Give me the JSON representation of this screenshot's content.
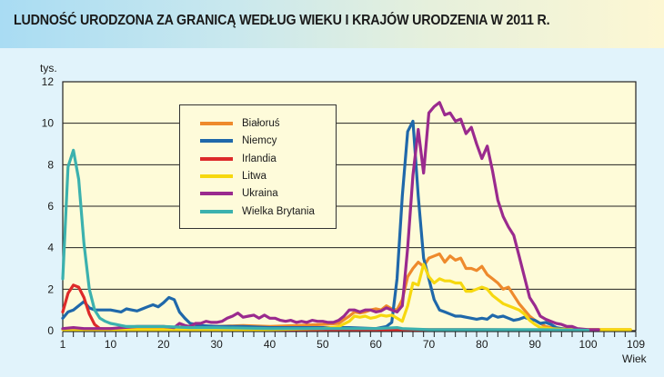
{
  "header": {
    "title": "LUDNOŚĆ URODZONA ZA GRANICĄ WEDŁUG WIEKU I KRAJÓW URODZENIA W 2011 R."
  },
  "colors": {
    "plot_bg": "#fefbd8",
    "page_bg": "#e1f3fb",
    "grid": "#222222"
  },
  "chart_data": {
    "type": "line",
    "title": "LUDNOŚĆ URODZONA ZA GRANICĄ WEDŁUG WIEKU I KRAJÓW URODZENIA W 2011 R.",
    "xlabel": "Wiek",
    "ylabel": "tys.",
    "xlim": [
      1,
      109
    ],
    "ylim": [
      0,
      12
    ],
    "x_ticks": [
      1,
      10,
      20,
      30,
      40,
      50,
      60,
      70,
      80,
      90,
      100,
      109
    ],
    "y_ticks": [
      0,
      2,
      4,
      6,
      8,
      10,
      12
    ],
    "grid": "horizontal",
    "legend_position": "upper-left-inset",
    "series": [
      {
        "name": "Białoruś",
        "color": "#ee8a2c",
        "points": [
          [
            1,
            0.05
          ],
          [
            10,
            0.1
          ],
          [
            20,
            0.15
          ],
          [
            25,
            0.2
          ],
          [
            30,
            0.2
          ],
          [
            35,
            0.25
          ],
          [
            40,
            0.2
          ],
          [
            45,
            0.25
          ],
          [
            50,
            0.3
          ],
          [
            53,
            0.35
          ],
          [
            55,
            0.7
          ],
          [
            56,
            0.9
          ],
          [
            57,
            0.85
          ],
          [
            58,
            0.9
          ],
          [
            59,
            1.0
          ],
          [
            60,
            1.05
          ],
          [
            61,
            1.0
          ],
          [
            62,
            1.2
          ],
          [
            63,
            1.05
          ],
          [
            64,
            1.0
          ],
          [
            65,
            1.5
          ],
          [
            66,
            2.6
          ],
          [
            67,
            3.0
          ],
          [
            68,
            3.3
          ],
          [
            69,
            3.1
          ],
          [
            70,
            3.5
          ],
          [
            71,
            3.6
          ],
          [
            72,
            3.7
          ],
          [
            73,
            3.3
          ],
          [
            74,
            3.6
          ],
          [
            75,
            3.4
          ],
          [
            76,
            3.5
          ],
          [
            77,
            3.0
          ],
          [
            78,
            3.0
          ],
          [
            79,
            2.9
          ],
          [
            80,
            3.1
          ],
          [
            81,
            2.7
          ],
          [
            82,
            2.5
          ],
          [
            83,
            2.3
          ],
          [
            84,
            2.0
          ],
          [
            85,
            2.1
          ],
          [
            86,
            1.7
          ],
          [
            87,
            1.3
          ],
          [
            88,
            1.0
          ],
          [
            89,
            0.7
          ],
          [
            90,
            0.5
          ],
          [
            91,
            0.35
          ],
          [
            92,
            0.2
          ],
          [
            93,
            0.15
          ],
          [
            95,
            0.1
          ],
          [
            100,
            0.05
          ],
          [
            103,
            0.05
          ],
          [
            105,
            0.05
          ],
          [
            108,
            0.05
          ]
        ]
      },
      {
        "name": "Niemcy",
        "color": "#1f68aa",
        "points": [
          [
            1,
            0.6
          ],
          [
            2,
            0.9
          ],
          [
            3,
            1.0
          ],
          [
            4,
            1.2
          ],
          [
            5,
            1.4
          ],
          [
            6,
            1.1
          ],
          [
            7,
            1.0
          ],
          [
            8,
            1.0
          ],
          [
            9,
            1.0
          ],
          [
            10,
            1.0
          ],
          [
            11,
            0.95
          ],
          [
            12,
            0.9
          ],
          [
            13,
            1.05
          ],
          [
            14,
            1.0
          ],
          [
            15,
            0.95
          ],
          [
            16,
            1.05
          ],
          [
            17,
            1.15
          ],
          [
            18,
            1.25
          ],
          [
            19,
            1.15
          ],
          [
            20,
            1.35
          ],
          [
            21,
            1.6
          ],
          [
            22,
            1.5
          ],
          [
            23,
            0.9
          ],
          [
            24,
            0.6
          ],
          [
            25,
            0.35
          ],
          [
            27,
            0.25
          ],
          [
            30,
            0.2
          ],
          [
            35,
            0.2
          ],
          [
            40,
            0.15
          ],
          [
            45,
            0.15
          ],
          [
            50,
            0.15
          ],
          [
            55,
            0.15
          ],
          [
            60,
            0.1
          ],
          [
            62,
            0.2
          ],
          [
            63,
            0.4
          ],
          [
            64,
            2.5
          ],
          [
            65,
            6.5
          ],
          [
            66,
            9.6
          ],
          [
            67,
            10.1
          ],
          [
            68,
            6.5
          ],
          [
            69,
            3.5
          ],
          [
            70,
            2.5
          ],
          [
            71,
            1.5
          ],
          [
            72,
            1.0
          ],
          [
            73,
            0.9
          ],
          [
            74,
            0.8
          ],
          [
            75,
            0.7
          ],
          [
            76,
            0.7
          ],
          [
            77,
            0.65
          ],
          [
            78,
            0.6
          ],
          [
            79,
            0.55
          ],
          [
            80,
            0.6
          ],
          [
            81,
            0.55
          ],
          [
            82,
            0.75
          ],
          [
            83,
            0.65
          ],
          [
            84,
            0.7
          ],
          [
            85,
            0.6
          ],
          [
            86,
            0.5
          ],
          [
            87,
            0.55
          ],
          [
            88,
            0.65
          ],
          [
            89,
            0.55
          ],
          [
            90,
            0.5
          ],
          [
            91,
            0.35
          ],
          [
            92,
            0.4
          ],
          [
            93,
            0.3
          ],
          [
            94,
            0.15
          ],
          [
            96,
            0.05
          ],
          [
            100,
            0.02
          ]
        ]
      },
      {
        "name": "Irlandia",
        "color": "#dd2a2a",
        "points": [
          [
            1,
            0.9
          ],
          [
            2,
            1.8
          ],
          [
            3,
            2.2
          ],
          [
            4,
            2.1
          ],
          [
            5,
            1.6
          ],
          [
            6,
            0.8
          ],
          [
            7,
            0.3
          ],
          [
            8,
            0.1
          ],
          [
            10,
            0.05
          ],
          [
            20,
            0.05
          ],
          [
            40,
            0.05
          ],
          [
            60,
            0.05
          ],
          [
            80,
            0.05
          ],
          [
            100,
            0.02
          ]
        ]
      },
      {
        "name": "Litwa",
        "color": "#f6d80f",
        "points": [
          [
            1,
            0.05
          ],
          [
            10,
            0.05
          ],
          [
            20,
            0.05
          ],
          [
            30,
            0.05
          ],
          [
            40,
            0.05
          ],
          [
            50,
            0.1
          ],
          [
            53,
            0.2
          ],
          [
            55,
            0.45
          ],
          [
            56,
            0.7
          ],
          [
            57,
            0.65
          ],
          [
            58,
            0.7
          ],
          [
            59,
            0.6
          ],
          [
            60,
            0.65
          ],
          [
            61,
            0.75
          ],
          [
            62,
            0.7
          ],
          [
            63,
            0.75
          ],
          [
            64,
            0.6
          ],
          [
            65,
            0.45
          ],
          [
            66,
            1.2
          ],
          [
            67,
            2.3
          ],
          [
            68,
            2.2
          ],
          [
            69,
            3.2
          ],
          [
            70,
            2.6
          ],
          [
            71,
            2.3
          ],
          [
            72,
            2.5
          ],
          [
            73,
            2.4
          ],
          [
            74,
            2.4
          ],
          [
            75,
            2.3
          ],
          [
            76,
            2.3
          ],
          [
            77,
            1.9
          ],
          [
            78,
            1.9
          ],
          [
            79,
            2.0
          ],
          [
            80,
            2.1
          ],
          [
            81,
            2.0
          ],
          [
            82,
            1.7
          ],
          [
            83,
            1.5
          ],
          [
            84,
            1.3
          ],
          [
            85,
            1.2
          ],
          [
            86,
            1.1
          ],
          [
            87,
            1.0
          ],
          [
            88,
            0.8
          ],
          [
            89,
            0.5
          ],
          [
            90,
            0.3
          ],
          [
            91,
            0.15
          ],
          [
            93,
            0.1
          ],
          [
            96,
            0.05
          ],
          [
            100,
            0.05
          ],
          [
            104,
            0.05
          ],
          [
            108,
            0.05
          ]
        ]
      },
      {
        "name": "Ukraina",
        "color": "#9a2a8e",
        "points": [
          [
            1,
            0.1
          ],
          [
            3,
            0.15
          ],
          [
            5,
            0.1
          ],
          [
            10,
            0.1
          ],
          [
            15,
            0.2
          ],
          [
            20,
            0.2
          ],
          [
            22,
            0.15
          ],
          [
            23,
            0.35
          ],
          [
            24,
            0.25
          ],
          [
            25,
            0.2
          ],
          [
            26,
            0.35
          ],
          [
            27,
            0.35
          ],
          [
            28,
            0.45
          ],
          [
            29,
            0.4
          ],
          [
            30,
            0.4
          ],
          [
            31,
            0.45
          ],
          [
            32,
            0.6
          ],
          [
            33,
            0.7
          ],
          [
            34,
            0.85
          ],
          [
            35,
            0.65
          ],
          [
            36,
            0.7
          ],
          [
            37,
            0.75
          ],
          [
            38,
            0.6
          ],
          [
            39,
            0.75
          ],
          [
            40,
            0.6
          ],
          [
            41,
            0.6
          ],
          [
            42,
            0.5
          ],
          [
            43,
            0.45
          ],
          [
            44,
            0.5
          ],
          [
            45,
            0.4
          ],
          [
            46,
            0.45
          ],
          [
            47,
            0.4
          ],
          [
            48,
            0.5
          ],
          [
            49,
            0.45
          ],
          [
            50,
            0.45
          ],
          [
            51,
            0.4
          ],
          [
            52,
            0.4
          ],
          [
            53,
            0.5
          ],
          [
            54,
            0.7
          ],
          [
            55,
            1.0
          ],
          [
            56,
            1.0
          ],
          [
            57,
            0.9
          ],
          [
            58,
            1.0
          ],
          [
            59,
            1.0
          ],
          [
            60,
            0.9
          ],
          [
            61,
            0.95
          ],
          [
            62,
            1.1
          ],
          [
            63,
            1.0
          ],
          [
            64,
            0.9
          ],
          [
            65,
            1.2
          ],
          [
            66,
            4.0
          ],
          [
            67,
            7.5
          ],
          [
            68,
            9.7
          ],
          [
            69,
            7.6
          ],
          [
            70,
            10.5
          ],
          [
            71,
            10.8
          ],
          [
            72,
            11.0
          ],
          [
            73,
            10.4
          ],
          [
            74,
            10.5
          ],
          [
            75,
            10.1
          ],
          [
            76,
            10.2
          ],
          [
            77,
            9.5
          ],
          [
            78,
            9.8
          ],
          [
            79,
            9.0
          ],
          [
            80,
            8.3
          ],
          [
            81,
            8.9
          ],
          [
            82,
            7.7
          ],
          [
            83,
            6.3
          ],
          [
            84,
            5.5
          ],
          [
            85,
            5.0
          ],
          [
            86,
            4.6
          ],
          [
            87,
            3.6
          ],
          [
            88,
            2.6
          ],
          [
            89,
            1.6
          ],
          [
            90,
            1.2
          ],
          [
            91,
            0.7
          ],
          [
            92,
            0.55
          ],
          [
            93,
            0.45
          ],
          [
            94,
            0.35
          ],
          [
            95,
            0.3
          ],
          [
            96,
            0.2
          ],
          [
            97,
            0.2
          ],
          [
            98,
            0.1
          ],
          [
            100,
            0.05
          ],
          [
            101,
            0.05
          ],
          [
            102,
            0.05
          ]
        ]
      },
      {
        "name": "Wielka Brytania",
        "color": "#3bb1ae",
        "points": [
          [
            1,
            2.5
          ],
          [
            2,
            7.9
          ],
          [
            3,
            8.7
          ],
          [
            4,
            7.3
          ],
          [
            5,
            4.2
          ],
          [
            6,
            2.0
          ],
          [
            7,
            1.0
          ],
          [
            8,
            0.6
          ],
          [
            9,
            0.45
          ],
          [
            10,
            0.35
          ],
          [
            11,
            0.3
          ],
          [
            12,
            0.25
          ],
          [
            13,
            0.2
          ],
          [
            15,
            0.2
          ],
          [
            20,
            0.2
          ],
          [
            25,
            0.15
          ],
          [
            30,
            0.15
          ],
          [
            40,
            0.1
          ],
          [
            50,
            0.1
          ],
          [
            60,
            0.1
          ],
          [
            64,
            0.15
          ],
          [
            65,
            0.1
          ],
          [
            70,
            0.05
          ],
          [
            80,
            0.05
          ],
          [
            90,
            0.05
          ],
          [
            100,
            0.02
          ]
        ]
      }
    ]
  },
  "legend": {
    "items": [
      {
        "label": "Białoruś",
        "color": "#ee8a2c"
      },
      {
        "label": "Niemcy",
        "color": "#1f68aa"
      },
      {
        "label": "Irlandia",
        "color": "#dd2a2a"
      },
      {
        "label": "Litwa",
        "color": "#f6d80f"
      },
      {
        "label": "Ukraina",
        "color": "#9a2a8e"
      },
      {
        "label": "Wielka Brytania",
        "color": "#3bb1ae"
      }
    ]
  },
  "axes": {
    "y_unit": "tys.",
    "x_label": "Wiek",
    "y_tick_labels": [
      "0",
      "2",
      "4",
      "6",
      "8",
      "10",
      "12"
    ],
    "x_tick_labels": [
      "1",
      "10",
      "20",
      "30",
      "40",
      "50",
      "60",
      "70",
      "80",
      "90",
      "100",
      "109"
    ]
  }
}
